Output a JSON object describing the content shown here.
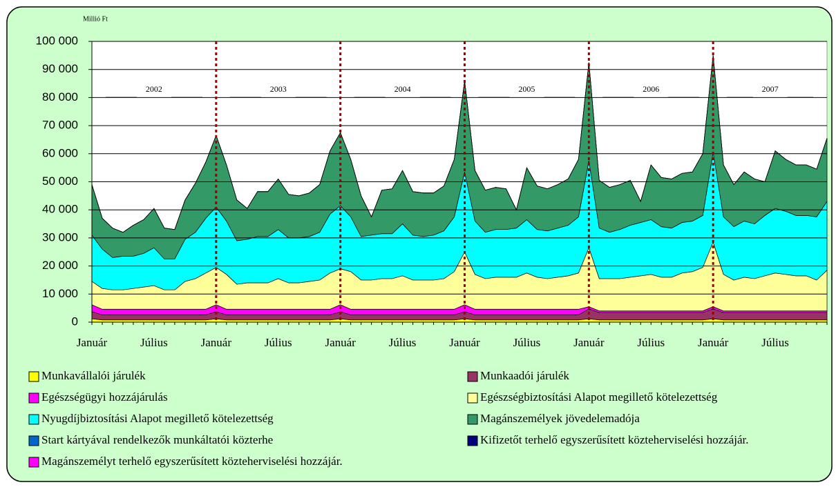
{
  "chart_data": {
    "type": "stacked_area",
    "ylabel": "Millió Ft",
    "categories": [
      "Január",
      null,
      null,
      null,
      null,
      null,
      "Július",
      null,
      null,
      null,
      null,
      null,
      "Január",
      null,
      null,
      null,
      null,
      null,
      "Július",
      null,
      null,
      null,
      null,
      null,
      "Január",
      null,
      null,
      null,
      null,
      null,
      "Július",
      null,
      null,
      null,
      null,
      null,
      "Január",
      null,
      null,
      null,
      null,
      null,
      "Július",
      null,
      null,
      null,
      null,
      null,
      "Január",
      null,
      null,
      null,
      null,
      null,
      "Július",
      null,
      null,
      null,
      null,
      null,
      "Január",
      null,
      null,
      null,
      null,
      null,
      "Július",
      null,
      null,
      null,
      null,
      null
    ],
    "annotations": [
      "2002",
      "2003",
      "2004",
      "2005",
      "2006",
      "2007"
    ],
    "ylim": [
      0,
      100000
    ],
    "yticks": [
      0,
      {
        "value": 10000,
        "label": "10 000"
      },
      {
        "value": 20000,
        "label": "20 000"
      },
      {
        "value": 30000,
        "label": "30 000"
      },
      {
        "value": 40000,
        "label": "40 000"
      },
      {
        "value": 50000,
        "label": "50 000"
      },
      {
        "value": 60000,
        "label": "60 000"
      },
      {
        "value": 70000,
        "label": "70 000"
      },
      {
        "value": 80000,
        "label": "80 000"
      },
      {
        "value": 90000,
        "label": "90 000"
      },
      {
        "value": 100000,
        "label": "100 000"
      }
    ],
    "grid": true,
    "series": [
      {
        "name": "Munkavállalói járulék",
        "color": "#ffff00",
        "values": [
          1200,
          800,
          800,
          800,
          800,
          800,
          800,
          800,
          800,
          800,
          800,
          800,
          1200,
          800,
          800,
          800,
          800,
          800,
          800,
          800,
          800,
          800,
          800,
          800,
          1200,
          800,
          800,
          800,
          800,
          800,
          800,
          800,
          800,
          800,
          800,
          800,
          1200,
          800,
          800,
          800,
          800,
          800,
          800,
          800,
          800,
          800,
          800,
          800,
          1200,
          800,
          800,
          800,
          800,
          800,
          800,
          800,
          800,
          800,
          800,
          800,
          1200,
          800,
          800,
          800,
          800,
          800,
          800,
          800,
          800,
          800,
          800,
          800
        ]
      },
      {
        "name": "Munkaadói járulék",
        "color": "#993366",
        "values": [
          2500,
          1800,
          1800,
          1800,
          1800,
          1800,
          1800,
          1800,
          1800,
          1800,
          1800,
          1800,
          2500,
          1800,
          1800,
          1800,
          1800,
          1800,
          1800,
          1800,
          1800,
          1800,
          1800,
          1800,
          2500,
          1800,
          1800,
          1800,
          1800,
          1800,
          1800,
          1800,
          1800,
          1800,
          1800,
          1800,
          2500,
          1800,
          1800,
          1800,
          1800,
          1800,
          1800,
          1800,
          1800,
          1800,
          1800,
          1800,
          3500,
          2600,
          2600,
          2600,
          2600,
          2600,
          2600,
          2600,
          2600,
          2600,
          2600,
          2600,
          3500,
          2600,
          2600,
          2600,
          2600,
          2600,
          2600,
          2600,
          2600,
          2600,
          2600,
          2600
        ]
      },
      {
        "name": "Egészségügyi hozzájárulás",
        "color": "#ff00ff",
        "values": [
          2500,
          2000,
          2000,
          2000,
          2000,
          2000,
          2000,
          2000,
          2000,
          2000,
          2000,
          2000,
          2500,
          2000,
          2000,
          2000,
          2000,
          2000,
          2000,
          2000,
          2000,
          2000,
          2000,
          2000,
          2500,
          2000,
          2000,
          2000,
          2000,
          2000,
          2000,
          2000,
          2000,
          2000,
          2000,
          2000,
          2500,
          2000,
          2000,
          2000,
          2000,
          2000,
          2000,
          2000,
          2000,
          2000,
          2000,
          2000,
          800,
          600,
          600,
          600,
          600,
          600,
          600,
          600,
          600,
          600,
          600,
          600,
          800,
          600,
          600,
          600,
          600,
          600,
          600,
          600,
          600,
          600,
          600,
          600
        ]
      },
      {
        "name": "Egészségbiztosítási Alapot megillető kötelezettség",
        "color": "#ffff99",
        "values": [
          8300,
          7400,
          6900,
          6900,
          7400,
          7900,
          8400,
          6900,
          6900,
          9900,
          10900,
          12900,
          13300,
          12400,
          8900,
          9400,
          9400,
          9400,
          10900,
          9400,
          9400,
          9900,
          10400,
          12900,
          12800,
          13400,
          10400,
          10400,
          10900,
          10900,
          11900,
          10400,
          10400,
          10400,
          10900,
          13400,
          18800,
          12400,
          10900,
          11400,
          11400,
          11400,
          12900,
          11400,
          10900,
          11400,
          11900,
          12900,
          21000,
          11500,
          11500,
          11500,
          12000,
          12500,
          13000,
          12000,
          12000,
          13500,
          14000,
          15500,
          23000,
          13000,
          11000,
          12000,
          11500,
          12500,
          13500,
          13000,
          12500,
          12500,
          11000,
          14500
        ]
      },
      {
        "name": "Nyugdíjbiztosítási Alapot megillető kötelezettség",
        "color": "#00ffff",
        "values": [
          16500,
          14000,
          11500,
          12000,
          11500,
          12000,
          13500,
          11000,
          11000,
          15000,
          16500,
          19500,
          21500,
          19000,
          15500,
          15500,
          16500,
          16500,
          17500,
          16000,
          16000,
          16000,
          17000,
          21000,
          22500,
          19500,
          15500,
          16000,
          16000,
          16000,
          18500,
          16000,
          15500,
          16000,
          17000,
          19500,
          28500,
          19000,
          16500,
          17000,
          17000,
          17500,
          19000,
          17000,
          17000,
          17500,
          18000,
          20000,
          31000,
          18000,
          16500,
          17500,
          18500,
          19000,
          19500,
          18000,
          17500,
          18000,
          18000,
          18500,
          32000,
          20500,
          19000,
          20000,
          19500,
          21500,
          23000,
          22500,
          21500,
          21500,
          22500,
          24500
        ]
      },
      {
        "name": "Magánszemélyek jövedelemadója",
        "color": "#339966",
        "values": [
          18000,
          11000,
          10500,
          8500,
          11000,
          12000,
          14000,
          11000,
          10500,
          14000,
          17500,
          20000,
          25500,
          20000,
          14500,
          11000,
          16000,
          16000,
          18000,
          15500,
          15000,
          15500,
          17000,
          22500,
          26000,
          20500,
          14500,
          6500,
          15500,
          16000,
          19000,
          15500,
          15500,
          15000,
          16000,
          20500,
          32500,
          18000,
          15000,
          15000,
          14500,
          6500,
          18500,
          15500,
          15000,
          15500,
          16500,
          20500,
          35000,
          17000,
          16000,
          16000,
          16000,
          7500,
          19500,
          17500,
          17500,
          17500,
          17500,
          22000,
          34500,
          18500,
          15000,
          17500,
          16000,
          12000,
          20500,
          18500,
          18000,
          18000,
          17000,
          22500
        ]
      },
      {
        "name": "Start kártyával rendelkezők munkáltatói közterhe",
        "color": "#0066cc",
        "values": [
          0,
          0,
          0,
          0,
          0,
          0,
          0,
          0,
          0,
          0,
          0,
          0,
          0,
          0,
          0,
          0,
          0,
          0,
          0,
          0,
          0,
          0,
          0,
          0,
          0,
          0,
          0,
          0,
          0,
          0,
          0,
          0,
          0,
          0,
          0,
          0,
          0,
          0,
          0,
          0,
          0,
          0,
          0,
          0,
          0,
          0,
          0,
          0,
          0,
          0,
          0,
          0,
          0,
          0,
          0,
          0,
          0,
          0,
          0,
          0,
          0,
          0,
          0,
          0,
          0,
          0,
          0,
          0,
          0,
          0,
          0,
          0
        ]
      },
      {
        "name": "Kifizetőt terhelő egyszerűsített közteherviselési hozzájár.",
        "color": "#000080",
        "values": [
          0,
          0,
          0,
          0,
          0,
          0,
          0,
          0,
          0,
          0,
          0,
          0,
          0,
          0,
          0,
          0,
          0,
          0,
          0,
          0,
          0,
          0,
          0,
          0,
          0,
          0,
          0,
          0,
          0,
          0,
          0,
          0,
          0,
          0,
          0,
          0,
          0,
          0,
          0,
          0,
          0,
          0,
          0,
          0,
          0,
          0,
          0,
          0,
          0,
          0,
          0,
          0,
          0,
          0,
          0,
          0,
          0,
          0,
          0,
          0,
          0,
          0,
          0,
          0,
          0,
          0,
          0,
          0,
          0,
          0,
          0,
          0
        ]
      },
      {
        "name": "Magánszemélyt terhelő egyszerűsített közteherviselési hozzájár.",
        "color": "#ff00ff",
        "values": [
          0,
          0,
          0,
          0,
          0,
          0,
          0,
          0,
          0,
          0,
          0,
          0,
          0,
          0,
          0,
          0,
          0,
          0,
          0,
          0,
          0,
          0,
          0,
          0,
          0,
          0,
          0,
          0,
          0,
          0,
          0,
          0,
          0,
          0,
          0,
          0,
          0,
          0,
          0,
          0,
          0,
          0,
          0,
          0,
          0,
          0,
          0,
          0,
          0,
          0,
          0,
          0,
          0,
          0,
          0,
          0,
          0,
          0,
          0,
          0,
          0,
          0,
          0,
          0,
          0,
          0,
          0,
          0,
          0,
          0,
          0,
          0
        ]
      }
    ]
  }
}
